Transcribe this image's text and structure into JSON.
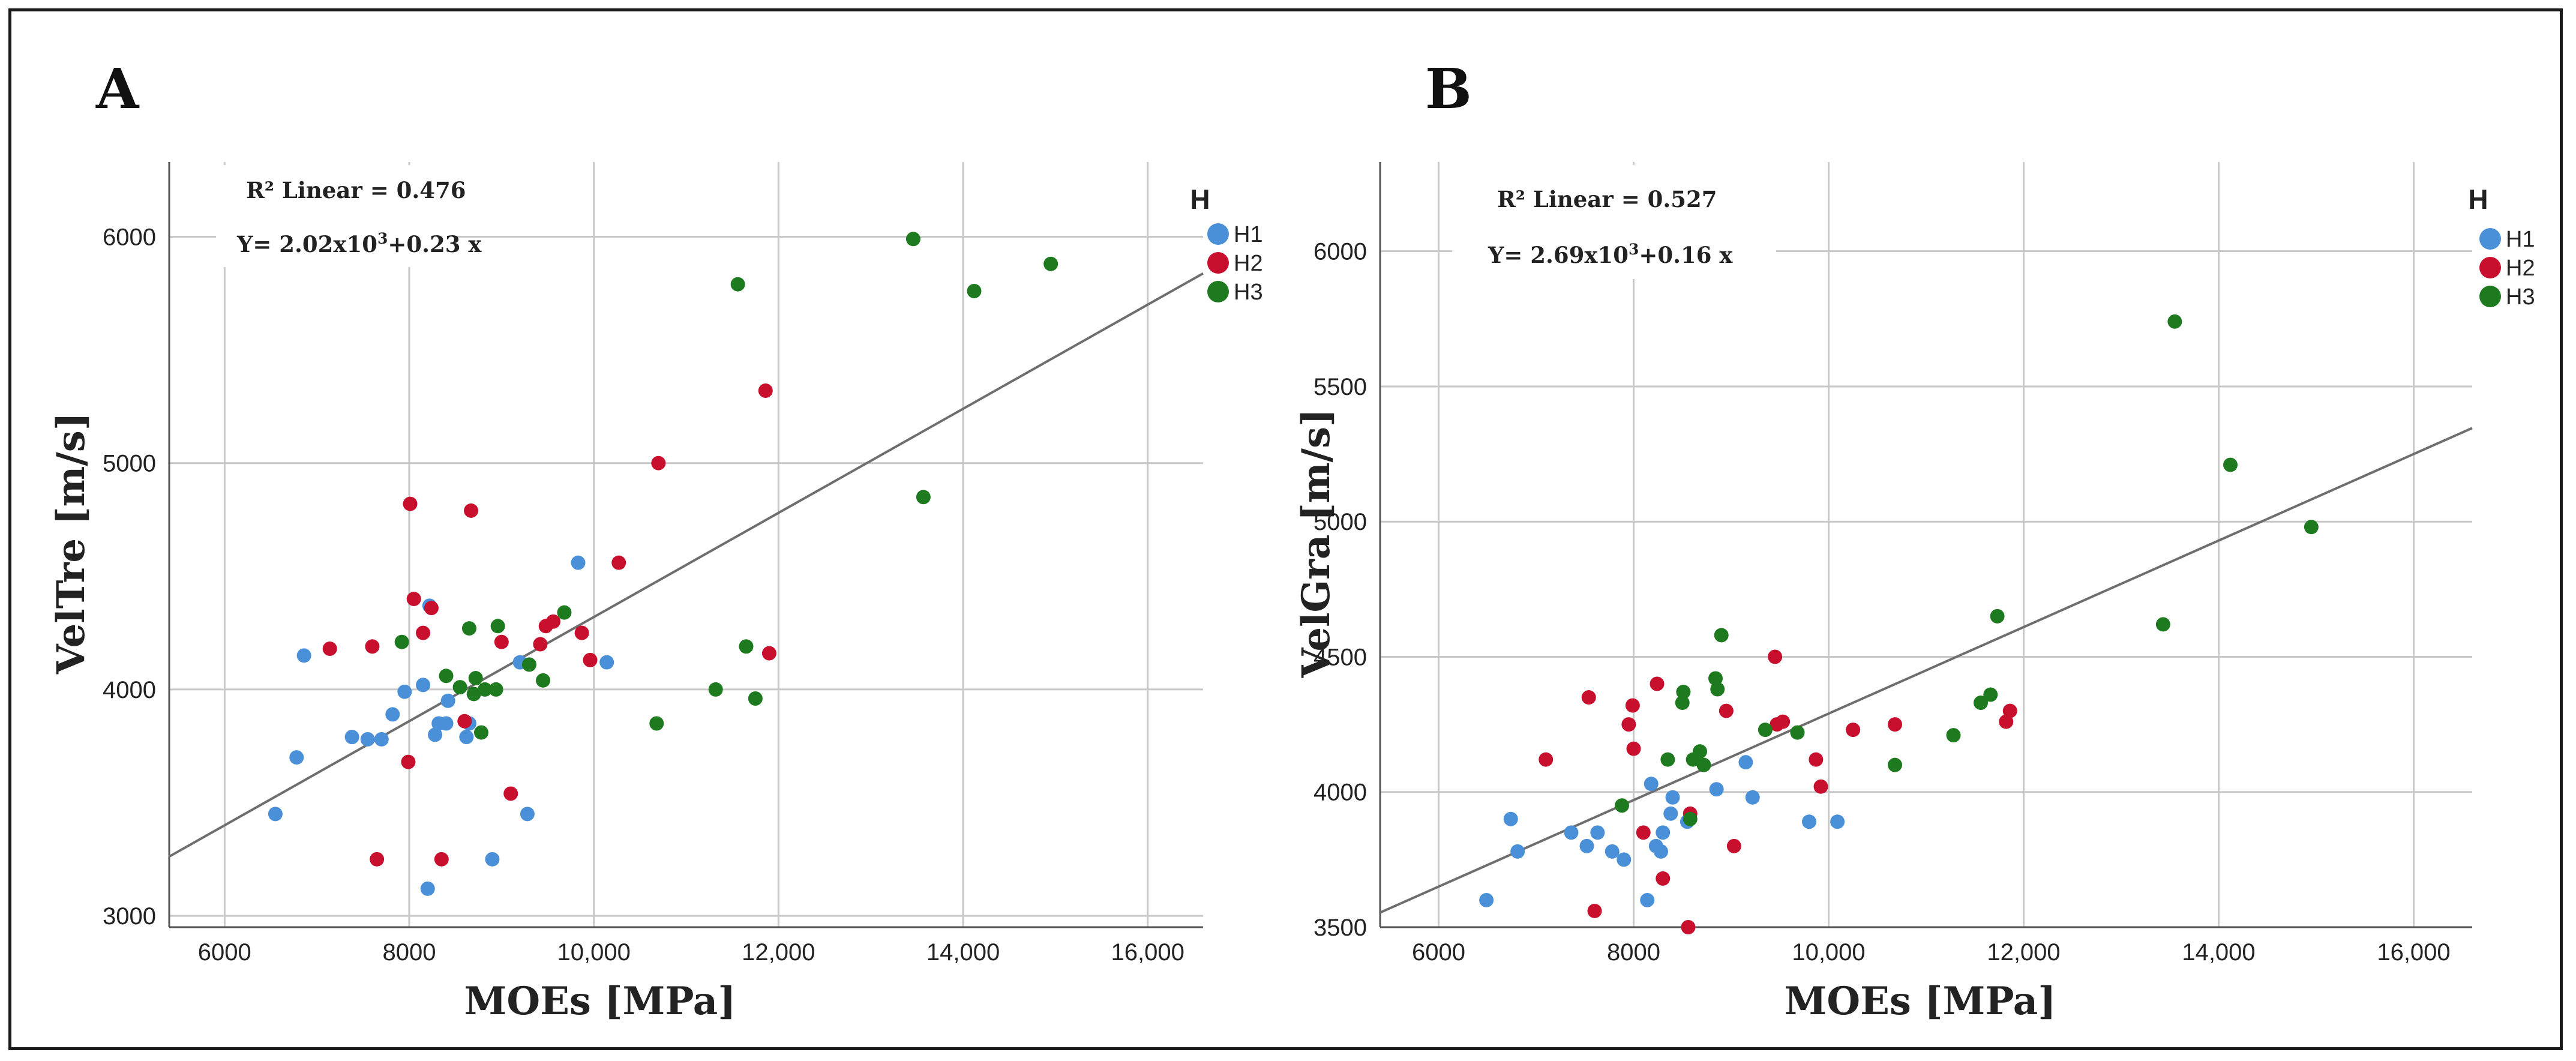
{
  "chart_data": [
    {
      "type": "scatter",
      "panel_label": "A",
      "xlabel": "MOEs [MPa]",
      "ylabel": "VelTre [m/s]",
      "xlim": [
        5400,
        16600
      ],
      "ylim": [
        2950,
        6330
      ],
      "xticks": [
        6000,
        8000,
        10000,
        12000,
        14000,
        16000
      ],
      "xtick_labels": [
        "6000",
        "8000",
        "10,000",
        "12,000",
        "14,000",
        "16,000"
      ],
      "yticks": [
        3000,
        4000,
        5000,
        6000
      ],
      "ytick_labels": [
        "3000",
        "4000",
        "5000",
        "6000"
      ],
      "grid": true,
      "annotations": {
        "r2": "R² Linear = 0.476",
        "eq_prefix": "Y= 2.02x10",
        "eq_exp": "3",
        "eq_suffix": "+0.23 x"
      },
      "fit_line": {
        "intercept": 2020,
        "slope": 0.23
      },
      "legend": {
        "title": "H",
        "position": "top-right"
      },
      "series": [
        {
          "name": "H1",
          "color": "#4a90d9",
          "points": [
            [
              6550,
              3450
            ],
            [
              6780,
              3700
            ],
            [
              6860,
              4150
            ],
            [
              7380,
              3790
            ],
            [
              7550,
              3780
            ],
            [
              7700,
              3780
            ],
            [
              7820,
              3890
            ],
            [
              7950,
              3990
            ],
            [
              8150,
              4020
            ],
            [
              8200,
              3120
            ],
            [
              8220,
              4370
            ],
            [
              8280,
              3800
            ],
            [
              8320,
              3850
            ],
            [
              8400,
              3850
            ],
            [
              8420,
              3950
            ],
            [
              8620,
              3790
            ],
            [
              8650,
              3850
            ],
            [
              8900,
              3250
            ],
            [
              9200,
              4120
            ],
            [
              9280,
              3450
            ],
            [
              9830,
              4560
            ],
            [
              10140,
              4120
            ]
          ]
        },
        {
          "name": "H2",
          "color": "#c8102e",
          "points": [
            [
              7140,
              4180
            ],
            [
              7600,
              4190
            ],
            [
              7650,
              3250
            ],
            [
              7990,
              3680
            ],
            [
              8010,
              4820
            ],
            [
              8050,
              4400
            ],
            [
              8150,
              4250
            ],
            [
              8240,
              4360
            ],
            [
              8350,
              3250
            ],
            [
              8600,
              3860
            ],
            [
              8670,
              4790
            ],
            [
              9000,
              4210
            ],
            [
              9100,
              3540
            ],
            [
              9420,
              4200
            ],
            [
              9480,
              4280
            ],
            [
              9560,
              4300
            ],
            [
              9870,
              4250
            ],
            [
              9960,
              4130
            ],
            [
              10270,
              4560
            ],
            [
              10700,
              5000
            ],
            [
              11860,
              5320
            ],
            [
              11900,
              4160
            ]
          ]
        },
        {
          "name": "H3",
          "color": "#1e7a1e",
          "points": [
            [
              7920,
              4210
            ],
            [
              8400,
              4060
            ],
            [
              8550,
              4010
            ],
            [
              8650,
              4270
            ],
            [
              8700,
              3980
            ],
            [
              8720,
              4050
            ],
            [
              8780,
              3810
            ],
            [
              8820,
              4000
            ],
            [
              8940,
              4000
            ],
            [
              8960,
              4280
            ],
            [
              9300,
              4110
            ],
            [
              9450,
              4040
            ],
            [
              9680,
              4340
            ],
            [
              10680,
              3850
            ],
            [
              11320,
              4000
            ],
            [
              11560,
              5790
            ],
            [
              11650,
              4190
            ],
            [
              11750,
              3960
            ],
            [
              13460,
              5990
            ],
            [
              13570,
              4850
            ],
            [
              14120,
              5760
            ],
            [
              14950,
              5880
            ]
          ]
        }
      ]
    },
    {
      "type": "scatter",
      "panel_label": "B",
      "xlabel": "MOEs [MPa]",
      "ylabel": "VelGra [m/s]",
      "xlim": [
        5400,
        16600
      ],
      "ylim": [
        3500,
        6330
      ],
      "xticks": [
        6000,
        8000,
        10000,
        12000,
        14000,
        16000
      ],
      "xtick_labels": [
        "6000",
        "8000",
        "10,000",
        "12,000",
        "14,000",
        "16,000"
      ],
      "yticks": [
        3500,
        4000,
        4500,
        5000,
        5500,
        6000
      ],
      "ytick_labels": [
        "3500",
        "4000",
        "4500",
        "5000",
        "5500",
        "6000"
      ],
      "grid": true,
      "annotations": {
        "r2": "R² Linear = 0.527",
        "eq_prefix": "Y= 2.69x10",
        "eq_exp": "3",
        "eq_suffix": "+0.16 x"
      },
      "fit_line": {
        "intercept": 2690,
        "slope": 0.16
      },
      "legend": {
        "title": "H",
        "position": "top-right"
      },
      "series": [
        {
          "name": "H1",
          "color": "#4a90d9",
          "points": [
            [
              6490,
              3600
            ],
            [
              6740,
              3900
            ],
            [
              6810,
              3780
            ],
            [
              7360,
              3850
            ],
            [
              7520,
              3800
            ],
            [
              7630,
              3850
            ],
            [
              7780,
              3780
            ],
            [
              7900,
              3750
            ],
            [
              8140,
              3600
            ],
            [
              8180,
              4030
            ],
            [
              8230,
              3800
            ],
            [
              8280,
              3780
            ],
            [
              8300,
              3850
            ],
            [
              8380,
              3920
            ],
            [
              8400,
              3980
            ],
            [
              8550,
              3890
            ],
            [
              8850,
              4010
            ],
            [
              9150,
              4110
            ],
            [
              9220,
              3980
            ],
            [
              9800,
              3890
            ],
            [
              10090,
              3890
            ]
          ]
        },
        {
          "name": "H2",
          "color": "#c8102e",
          "points": [
            [
              7100,
              4120
            ],
            [
              7540,
              4350
            ],
            [
              7600,
              3560
            ],
            [
              7950,
              4250
            ],
            [
              7990,
              4320
            ],
            [
              8000,
              4160
            ],
            [
              8100,
              3850
            ],
            [
              8240,
              4400
            ],
            [
              8300,
              3680
            ],
            [
              8560,
              3500
            ],
            [
              8580,
              3920
            ],
            [
              8950,
              4300
            ],
            [
              9030,
              3800
            ],
            [
              9450,
              4500
            ],
            [
              9470,
              4250
            ],
            [
              9530,
              4260
            ],
            [
              9870,
              4120
            ],
            [
              9920,
              4020
            ],
            [
              10250,
              4230
            ],
            [
              10680,
              4250
            ],
            [
              11820,
              4260
            ],
            [
              11860,
              4300
            ]
          ]
        },
        {
          "name": "H3",
          "color": "#1e7a1e",
          "points": [
            [
              7880,
              3950
            ],
            [
              8350,
              4120
            ],
            [
              8500,
              4330
            ],
            [
              8510,
              4370
            ],
            [
              8580,
              3900
            ],
            [
              8610,
              4120
            ],
            [
              8680,
              4150
            ],
            [
              8720,
              4100
            ],
            [
              8840,
              4420
            ],
            [
              8860,
              4380
            ],
            [
              8900,
              4580
            ],
            [
              9350,
              4230
            ],
            [
              9680,
              4220
            ],
            [
              10680,
              4100
            ],
            [
              11280,
              4210
            ],
            [
              11560,
              4330
            ],
            [
              11660,
              4360
            ],
            [
              11730,
              4650
            ],
            [
              13430,
              4620
            ],
            [
              13550,
              5740
            ],
            [
              14120,
              5210
            ],
            [
              14950,
              4980
            ]
          ]
        }
      ]
    }
  ]
}
